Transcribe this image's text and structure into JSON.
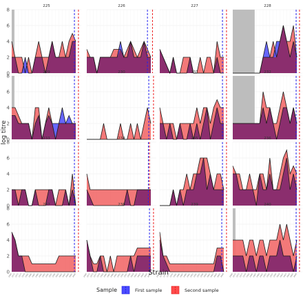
{
  "chart_data": {
    "type": "area",
    "xlabel": "Strain",
    "ylabel": "log titre",
    "ylim": [
      0,
      8
    ],
    "yticks": [
      0,
      2,
      4,
      6,
      8
    ],
    "n_strains": 20,
    "strain_tick_labels": [
      "1968",
      "1972",
      "1975",
      "1977",
      "1979",
      "1982",
      "1985",
      "1987",
      "1989",
      "1992",
      "1993",
      "1995",
      "1997",
      "1999",
      "2000",
      "2002",
      "2003",
      "2004",
      "2005",
      "2008"
    ],
    "grid": true,
    "legend": {
      "title": "Sample",
      "position": "bottom",
      "entries": [
        "First sample",
        "Second sample"
      ]
    },
    "colors": {
      "first": "#3a3aff",
      "second": "#ff3a3a",
      "overlap": "#8b2e6e",
      "shade": "#bdbdbd",
      "first_line": "#2222ee",
      "second_line": "#ee2222"
    },
    "panels": [
      {
        "id": "225",
        "shade_to": 0.8,
        "first_line": 18.6,
        "second_line": 19.8,
        "first": [
          2,
          2,
          0,
          0,
          2,
          0,
          0,
          2,
          2,
          2,
          0,
          2,
          4,
          2,
          2,
          2,
          2,
          2,
          4,
          4
        ],
        "second": [
          4,
          2,
          2,
          2,
          0,
          2,
          0,
          2,
          4,
          2,
          2,
          2,
          4,
          2,
          2,
          4,
          2,
          4,
          5,
          4
        ]
      },
      {
        "id": "226",
        "shade_to": null,
        "first_line": 18.0,
        "second_line": 19.5,
        "first": [
          2,
          2,
          2,
          0,
          2,
          2,
          2,
          2,
          2,
          2,
          4,
          2,
          2,
          4,
          2,
          2,
          2,
          4,
          2,
          2
        ],
        "second": [
          3,
          2,
          2,
          0,
          2,
          2,
          2,
          2,
          3,
          3,
          3,
          2,
          3,
          4,
          3,
          2,
          3,
          4,
          3,
          2
        ]
      },
      {
        "id": "227",
        "shade_to": null,
        "first_line": 18.6,
        "second_line": 19.8,
        "first": [
          3,
          2,
          1,
          0,
          2,
          0,
          0,
          0,
          0,
          2,
          0,
          0,
          0,
          0,
          0,
          0,
          0,
          2,
          0,
          0
        ],
        "second": [
          3,
          2,
          1,
          0,
          2,
          0,
          0,
          2,
          2,
          2,
          0,
          0,
          2,
          0,
          2,
          2,
          0,
          4,
          2,
          2
        ]
      },
      {
        "id": "228",
        "shade_to": 6.5,
        "first_line": 18.8,
        "second_line": 19.8,
        "first": [
          0,
          0,
          0,
          0,
          0,
          0,
          0,
          0,
          0,
          2,
          4,
          2,
          2,
          4,
          4,
          6,
          4,
          2,
          4,
          2
        ],
        "second": [
          0,
          0,
          0,
          0,
          0,
          0,
          0,
          0,
          0,
          2,
          2,
          2,
          4,
          2,
          4,
          6,
          4,
          4,
          6,
          2
        ]
      },
      {
        "id": "229",
        "shade_to": 0.8,
        "first_line": 18.6,
        "second_line": 19.8,
        "first": [
          3,
          3,
          2,
          2,
          2,
          2,
          0,
          2,
          3,
          0,
          2,
          3,
          2,
          2,
          2,
          4,
          2,
          3,
          2,
          2
        ],
        "second": [
          4,
          4,
          3,
          2,
          2,
          2,
          0,
          4,
          4,
          0,
          2,
          4,
          2,
          0,
          2,
          2,
          2,
          2,
          2,
          2
        ]
      },
      {
        "id": "230",
        "shade_to": null,
        "first_line": 18.4,
        "second_line": 19.8,
        "first": [
          0,
          0,
          0,
          0,
          0,
          0,
          0,
          0,
          0,
          0,
          0,
          0,
          0,
          0,
          0,
          0,
          0,
          0,
          0,
          0
        ],
        "second": [
          0,
          0,
          0,
          0,
          0,
          2,
          0,
          0,
          0,
          0,
          2,
          0,
          0,
          2,
          0,
          2,
          0,
          2,
          4,
          2
        ]
      },
      {
        "id": "231",
        "shade_to": null,
        "first_line": 18.6,
        "second_line": 19.8,
        "first": [
          2,
          2,
          0,
          2,
          0,
          0,
          2,
          0,
          0,
          2,
          0,
          2,
          0,
          2,
          4,
          0,
          2,
          4,
          2,
          2
        ],
        "second": [
          4,
          2,
          2,
          2,
          2,
          0,
          2,
          2,
          2,
          2,
          2,
          4,
          2,
          4,
          4,
          2,
          4,
          5,
          4,
          4
        ]
      },
      {
        "id": "232",
        "shade_to": 6.5,
        "first_line": 18.8,
        "second_line": 19.8,
        "first": [
          2,
          2,
          2,
          2,
          2,
          2,
          2,
          2,
          2,
          4,
          2,
          4,
          2,
          0,
          2,
          4,
          4,
          2,
          4,
          2
        ],
        "second": [
          2,
          2,
          2,
          2,
          2,
          2,
          2,
          2,
          2,
          6,
          4,
          4,
          2,
          2,
          4,
          6,
          4,
          2,
          4,
          2
        ]
      },
      {
        "id": "233",
        "shade_to": null,
        "first_line": 18.6,
        "second_line": 19.8,
        "first": [
          2,
          2,
          0,
          2,
          2,
          0,
          0,
          2,
          0,
          0,
          0,
          2,
          2,
          0,
          0,
          0,
          2,
          0,
          2,
          0
        ],
        "second": [
          2,
          2,
          2,
          2,
          2,
          0,
          0,
          2,
          2,
          2,
          2,
          2,
          2,
          0,
          2,
          2,
          2,
          0,
          4,
          0
        ]
      },
      {
        "id": "234",
        "shade_to": null,
        "first_line": 18.3,
        "second_line": 18.6,
        "first": [
          2,
          1,
          0,
          0,
          0,
          0,
          0,
          0,
          0,
          0,
          0,
          0,
          2,
          0,
          0,
          2,
          2,
          2,
          2,
          2
        ],
        "second": [
          4,
          2,
          2,
          2,
          2,
          2,
          2,
          2,
          2,
          2,
          2,
          2,
          2,
          2,
          2,
          2,
          2,
          2,
          2,
          2
        ]
      },
      {
        "id": "235",
        "shade_to": null,
        "first_line": 18.6,
        "second_line": 19.8,
        "first": [
          0,
          0,
          0,
          0,
          2,
          0,
          2,
          0,
          2,
          2,
          2,
          4,
          4,
          6,
          2,
          4,
          2,
          2,
          2,
          2
        ],
        "second": [
          0,
          0,
          0,
          0,
          2,
          0,
          2,
          2,
          4,
          2,
          4,
          4,
          6,
          6,
          6,
          4,
          2,
          4,
          4,
          2
        ]
      },
      {
        "id": "236",
        "shade_to": null,
        "first_line": 18.8,
        "second_line": 19.8,
        "first": [
          4,
          4,
          2,
          2,
          2,
          2,
          2,
          0,
          4,
          2,
          2,
          4,
          2,
          2,
          2,
          4,
          6,
          2,
          4,
          2
        ],
        "second": [
          5,
          4,
          4,
          2,
          2,
          4,
          2,
          2,
          4,
          4,
          2,
          6,
          2,
          2,
          4,
          6,
          7,
          4,
          5,
          4
        ]
      },
      {
        "id": "237",
        "shade_to": null,
        "first_line": 18.6,
        "second_line": 19.8,
        "first": [
          5,
          4,
          2,
          2,
          0,
          0,
          0,
          0,
          0,
          0,
          0,
          0,
          0,
          0,
          0,
          0,
          0,
          0,
          0,
          0
        ],
        "second": [
          5,
          4,
          2,
          2,
          2,
          2,
          1,
          1,
          1,
          1,
          1,
          1,
          1,
          1,
          2,
          2,
          2,
          2,
          2,
          2
        ]
      },
      {
        "id": "238",
        "shade_to": null,
        "first_line": 18.6,
        "second_line": 19.8,
        "first": [
          4,
          2,
          0,
          0,
          2,
          0,
          0,
          0,
          0,
          0,
          0,
          0,
          0,
          2,
          0,
          2,
          2,
          2,
          2,
          2
        ],
        "second": [
          4,
          2,
          1,
          1,
          2,
          2,
          0,
          2,
          0,
          2,
          2,
          2,
          2,
          2,
          2,
          3,
          3,
          3,
          3,
          3
        ]
      },
      {
        "id": "239",
        "shade_to": null,
        "first_line": 18.4,
        "second_line": 19.8,
        "first": [
          4,
          2,
          1,
          0,
          0,
          0,
          0,
          0,
          0,
          0,
          0,
          0,
          0,
          0,
          0,
          0,
          0,
          2,
          2,
          0
        ],
        "second": [
          5,
          2,
          2,
          1,
          1,
          1,
          1,
          1,
          1,
          1,
          1,
          1,
          1,
          1,
          1,
          1,
          1,
          3,
          3,
          3
        ]
      },
      {
        "id": "240",
        "shade_to": 0.8,
        "first_line": 18.8,
        "second_line": 19.8,
        "first": [
          2,
          2,
          2,
          2,
          0,
          2,
          2,
          0,
          2,
          2,
          0,
          2,
          2,
          2,
          4,
          2,
          2,
          2,
          0,
          2
        ],
        "second": [
          4,
          4,
          4,
          4,
          2,
          4,
          4,
          2,
          4,
          4,
          2,
          4,
          4,
          4,
          6,
          4,
          6,
          4,
          2,
          4
        ]
      }
    ]
  }
}
